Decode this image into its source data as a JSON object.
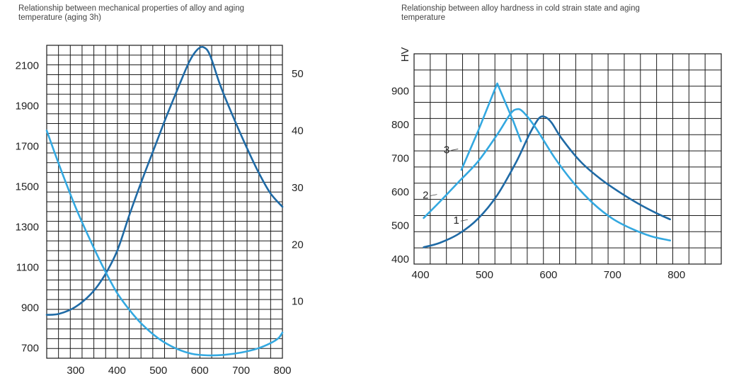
{
  "colors": {
    "dark": "#1f6aa5",
    "light": "#33a8e0",
    "grid": "#1a1a1a"
  },
  "chart_data": [
    {
      "type": "line",
      "title": "Relationship between mechanical properties of alloy and aging temperature (aging 3h)",
      "x_ticks": [
        300,
        400,
        500,
        600,
        700,
        800
      ],
      "xlim": [
        230,
        800
      ],
      "y_ticks": [
        700,
        900,
        1100,
        1300,
        1500,
        1700,
        1900,
        2100
      ],
      "ylim": [
        650,
        2200
      ],
      "y2_ticks": [
        10,
        20,
        30,
        40,
        50
      ],
      "y2lim": [
        0,
        55
      ],
      "grid": true,
      "series": [
        {
          "color_key": "dark",
          "axis": "left",
          "x": [
            230,
            260,
            300,
            340,
            370,
            400,
            430,
            460,
            490,
            520,
            550,
            575,
            595,
            610,
            625,
            650,
            680,
            710,
            740,
            770,
            800
          ],
          "y": [
            865,
            870,
            905,
            975,
            1060,
            1180,
            1360,
            1530,
            1690,
            1850,
            2000,
            2120,
            2180,
            2190,
            2150,
            2000,
            1850,
            1710,
            1580,
            1470,
            1400
          ]
        },
        {
          "color_key": "light",
          "axis": "right",
          "x": [
            230,
            260,
            300,
            340,
            370,
            400,
            430,
            460,
            500,
            540,
            580,
            620,
            660,
            700,
            740,
            770,
            790,
            800
          ],
          "y": [
            40,
            34,
            26.5,
            20,
            15.5,
            11.5,
            8.5,
            6,
            3.5,
            1.8,
            0.8,
            0.5,
            0.6,
            1,
            1.7,
            2.6,
            3.5,
            4.5
          ]
        }
      ]
    },
    {
      "type": "line",
      "title": "Relationship between alloy hardness in cold strain state and aging temperature",
      "ylabel": "HV",
      "x_ticks": [
        400,
        500,
        600,
        700,
        800
      ],
      "xlim": [
        390,
        870
      ],
      "y_ticks": [
        400,
        500,
        600,
        700,
        800,
        900
      ],
      "ylim": [
        385,
        1010
      ],
      "grid": true,
      "series": [
        {
          "name": "1",
          "color_key": "dark",
          "x": [
            405,
            430,
            460,
            490,
            520,
            550,
            570,
            585,
            595,
            605,
            620,
            650,
            680,
            710,
            740,
            770,
            790
          ],
          "y": [
            435,
            448,
            475,
            520,
            590,
            690,
            770,
            818,
            822,
            805,
            760,
            690,
            640,
            600,
            565,
            535,
            518
          ]
        },
        {
          "name": "2",
          "color_key": "light",
          "x": [
            405,
            430,
            460,
            490,
            520,
            540,
            550,
            560,
            580,
            610,
            640,
            670,
            700,
            730,
            760,
            790
          ],
          "y": [
            522,
            570,
            630,
            690,
            770,
            830,
            845,
            838,
            790,
            700,
            625,
            565,
            520,
            490,
            468,
            455
          ]
        },
        {
          "name": "3",
          "color_key": "light",
          "x": [
            464,
            490,
            520,
            545,
            557
          ],
          "y": [
            665,
            780,
            922,
            810,
            750
          ]
        }
      ],
      "labels": [
        {
          "text": "1",
          "x": 465,
          "y": 515
        },
        {
          "text": "2",
          "x": 417,
          "y": 590
        },
        {
          "text": "3",
          "x": 450,
          "y": 725
        }
      ]
    }
  ]
}
